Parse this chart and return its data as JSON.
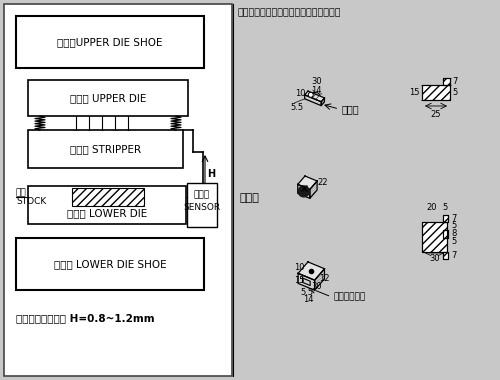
{
  "bg_color": "#c8c8c8",
  "left_panel_bg": "#ffffff",
  "right_panel_bg": "#ffffff",
  "box1_label": "上模座UPPER DIE SHOE",
  "box2_label": "上夾板 UPPER DIE",
  "box3_label": "脱料板 STRIPPER",
  "box4_label": "下模板 LOWER DIE",
  "box5_label": "下模座 LOWER DIE SHOE",
  "stock_line1": "材料",
  "stock_line2": "STOCK",
  "sensor_line1": "感應器",
  "sensor_line2": "SENSOR",
  "H_label": "H",
  "bottom_text": "衝床置於下死點時 H=0.8~1.2mm",
  "title_right": "感應鐵板與感應器、固定座之外形尺寸圖",
  "sensor_plate_label": "感應板",
  "sensor_label": "感應器",
  "mount_label": "感應器固定座"
}
